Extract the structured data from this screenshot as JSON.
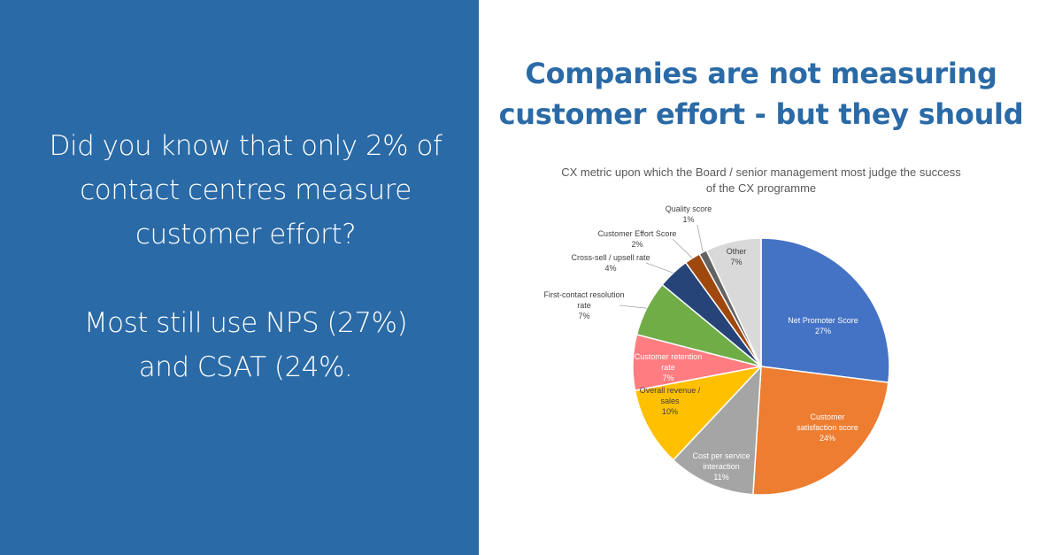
{
  "panel": {
    "paragraphs": [
      "Did you know that only 2% of contact centres measure customer effort?",
      "Most still use NPS (27%) and CSAT (24%."
    ]
  },
  "heading": "Companies are not measuring customer effort - but they should",
  "chart_data": {
    "type": "pie",
    "title": "CX metric upon which the Board / senior management most judge the success of the CX programme",
    "categories": [
      "Net Promoter Score",
      "Customer satisfaction score",
      "Cost per service interaction",
      "Overall revenue / sales",
      "Customer retention rate",
      "First-contact resolution rate",
      "Cross-sell / upsell rate",
      "Customer Effort Score",
      "Quality score",
      "Other"
    ],
    "values": [
      27,
      24,
      11,
      10,
      7,
      7,
      4,
      2,
      1,
      7
    ],
    "value_labels": [
      "27%",
      "24%",
      "11%",
      "10%",
      "7%",
      "7%",
      "4%",
      "2%",
      "1%",
      "7%"
    ],
    "colors": [
      "#4472c4",
      "#ed7d31",
      "#a5a5a5",
      "#ffc000",
      "#ff7c80",
      "#70ad47",
      "#264478",
      "#9e480e",
      "#636363",
      "#d9d9d9"
    ]
  }
}
